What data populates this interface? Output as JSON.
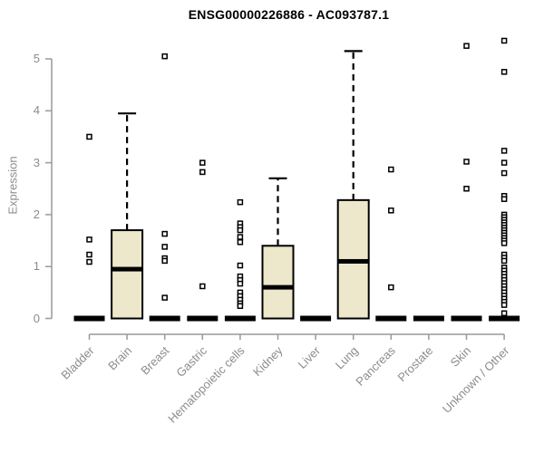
{
  "chart_data": {
    "type": "boxplot",
    "title": "ENSG00000226886 - AC093787.1",
    "ylabel": "Expression",
    "xlabel": "",
    "ylim": [
      0,
      5.4
    ],
    "yticks": [
      0,
      1,
      2,
      3,
      4,
      5
    ],
    "grid": false,
    "legend": "none",
    "categories": [
      "Bladder",
      "Brain",
      "Breast",
      "Gastric",
      "Hematopoietic cells",
      "Kidney",
      "Liver",
      "Lung",
      "Pancreas",
      "Prostate",
      "Skin",
      "Unknown / Other"
    ],
    "boxes": [
      {
        "category": "Bladder",
        "whisker_low": 0,
        "q1": 0,
        "median": 0,
        "q3": 0,
        "whisker_high": 0,
        "outliers": [
          3.5,
          1.52,
          1.23,
          1.09
        ]
      },
      {
        "category": "Brain",
        "whisker_low": 0,
        "q1": 0,
        "median": 0.95,
        "q3": 1.7,
        "whisker_high": 3.95,
        "outliers": []
      },
      {
        "category": "Breast",
        "whisker_low": 0,
        "q1": 0,
        "median": 0,
        "q3": 0,
        "whisker_high": 0,
        "outliers": [
          5.05,
          1.63,
          1.38,
          1.16,
          1.11,
          0.4
        ]
      },
      {
        "category": "Gastric",
        "whisker_low": 0,
        "q1": 0,
        "median": 0,
        "q3": 0,
        "whisker_high": 0,
        "outliers": [
          3.0,
          2.82,
          0.62
        ]
      },
      {
        "category": "Hematopoietic cells",
        "whisker_low": 0,
        "q1": 0,
        "median": 0,
        "q3": 0,
        "whisker_high": 0,
        "outliers": [
          2.24,
          1.83,
          1.76,
          1.7,
          1.57,
          1.47,
          1.02,
          0.81,
          0.74,
          0.67,
          0.5,
          0.43,
          0.36,
          0.29,
          0.24
        ]
      },
      {
        "category": "Kidney",
        "whisker_low": 0,
        "q1": 0,
        "median": 0.6,
        "q3": 1.4,
        "whisker_high": 2.7,
        "outliers": []
      },
      {
        "category": "Liver",
        "whisker_low": 0,
        "q1": 0,
        "median": 0,
        "q3": 0,
        "whisker_high": 0,
        "outliers": []
      },
      {
        "category": "Lung",
        "whisker_low": 0,
        "q1": 0,
        "median": 1.1,
        "q3": 2.28,
        "whisker_high": 5.15,
        "outliers": []
      },
      {
        "category": "Pancreas",
        "whisker_low": 0,
        "q1": 0,
        "median": 0,
        "q3": 0,
        "whisker_high": 0,
        "outliers": [
          2.87,
          2.08,
          0.6
        ]
      },
      {
        "category": "Prostate",
        "whisker_low": 0,
        "q1": 0,
        "median": 0,
        "q3": 0,
        "whisker_high": 0,
        "outliers": []
      },
      {
        "category": "Skin",
        "whisker_low": 0,
        "q1": 0,
        "median": 0,
        "q3": 0,
        "whisker_high": 0,
        "outliers": [
          5.25,
          3.02,
          2.5
        ]
      },
      {
        "category": "Unknown / Other",
        "whisker_low": 0,
        "q1": 0,
        "median": 0,
        "q3": 0,
        "whisker_high": 0,
        "outliers": [
          5.35,
          4.75,
          3.23,
          3.0,
          2.8,
          2.36,
          2.3,
          2.0,
          1.95,
          1.9,
          1.85,
          1.8,
          1.75,
          1.7,
          1.65,
          1.6,
          1.55,
          1.5,
          1.45,
          1.23,
          1.17,
          1.11,
          0.98,
          0.92,
          0.86,
          0.8,
          0.74,
          0.68,
          0.62,
          0.56,
          0.5,
          0.44,
          0.38,
          0.32,
          0.26,
          0.1
        ]
      }
    ],
    "colors": {
      "box_fill": "#EDE7CB",
      "box_stroke": "#000000",
      "median": "#000000",
      "whisker": "#000000",
      "outlier_stroke": "#000000",
      "outlier_fill": "#ffffff",
      "axis": "#999999",
      "tick_text": "#8c8c8c",
      "title_text": "#000000",
      "background": "#ffffff"
    }
  }
}
